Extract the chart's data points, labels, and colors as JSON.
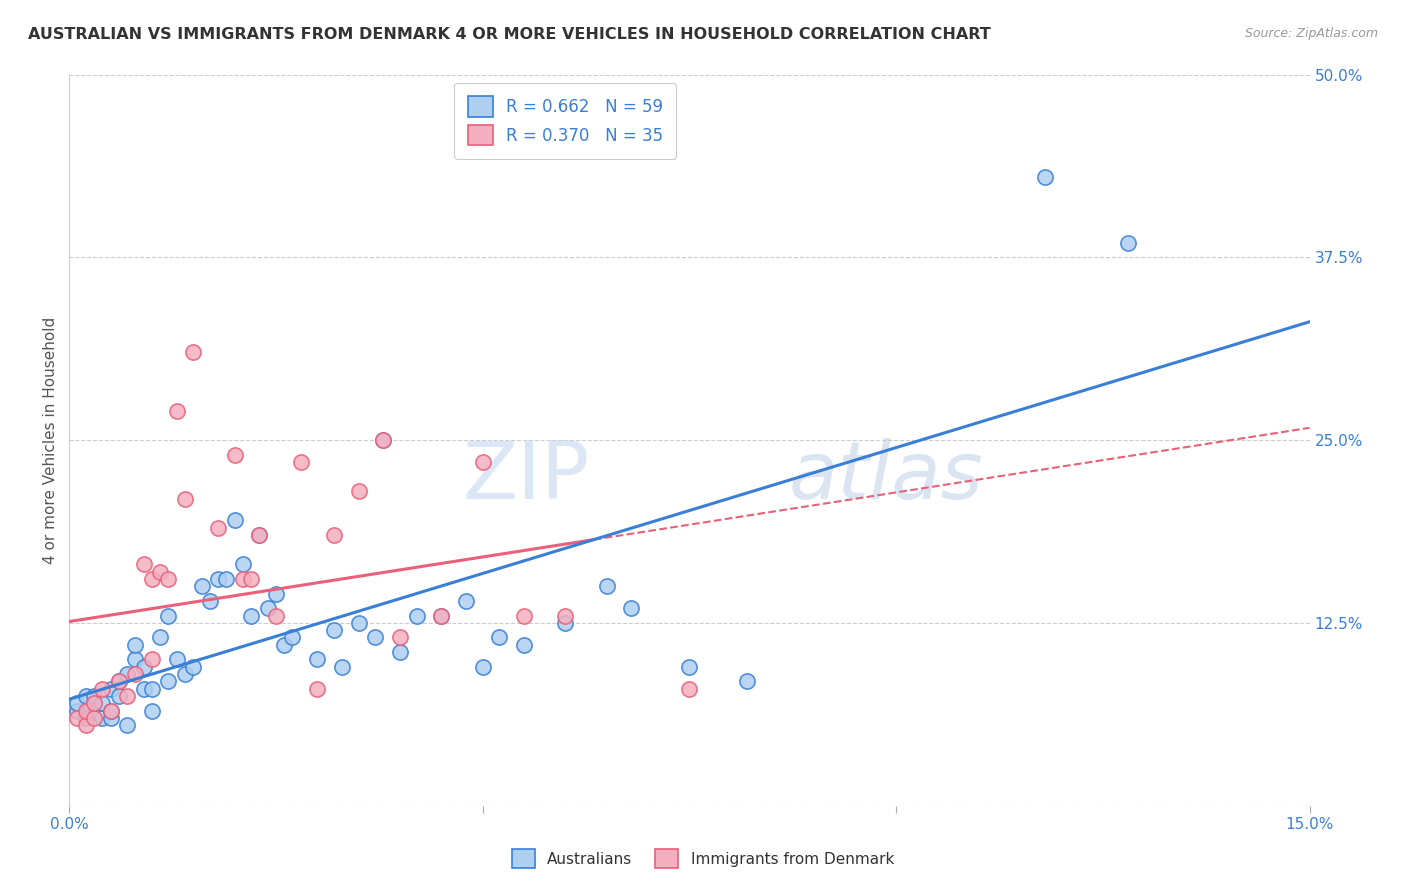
{
  "title": "AUSTRALIAN VS IMMIGRANTS FROM DENMARK 4 OR MORE VEHICLES IN HOUSEHOLD CORRELATION CHART",
  "source": "Source: ZipAtlas.com",
  "ylabel": "4 or more Vehicles in Household",
  "x_min": 0.0,
  "x_max": 0.15,
  "y_min": 0.0,
  "y_max": 0.5,
  "x_ticks": [
    0.0,
    0.05,
    0.1,
    0.15
  ],
  "x_tick_labels": [
    "0.0%",
    "",
    "",
    "15.0%"
  ],
  "y_ticks": [
    0.0,
    0.125,
    0.25,
    0.375,
    0.5
  ],
  "y_tick_labels": [
    "",
    "12.5%",
    "25.0%",
    "37.5%",
    "50.0%"
  ],
  "australian_color": "#aecff0",
  "danish_color": "#f4afc0",
  "line_australian_color": "#3a7fd5",
  "line_danish_color": "#e8607a",
  "R_australian": 0.662,
  "N_australian": 59,
  "R_danish": 0.37,
  "N_danish": 35,
  "watermark_zip": "ZIP",
  "watermark_atlas": "atlas",
  "legend_australians": "Australians",
  "legend_danish": "Immigrants from Denmark",
  "australian_x": [
    0.001,
    0.001,
    0.002,
    0.002,
    0.003,
    0.003,
    0.004,
    0.004,
    0.005,
    0.005,
    0.005,
    0.006,
    0.006,
    0.007,
    0.007,
    0.008,
    0.008,
    0.009,
    0.009,
    0.01,
    0.01,
    0.011,
    0.012,
    0.012,
    0.013,
    0.014,
    0.015,
    0.016,
    0.017,
    0.018,
    0.019,
    0.02,
    0.021,
    0.022,
    0.023,
    0.024,
    0.025,
    0.026,
    0.027,
    0.03,
    0.032,
    0.033,
    0.035,
    0.037,
    0.038,
    0.04,
    0.042,
    0.045,
    0.048,
    0.05,
    0.052,
    0.055,
    0.06,
    0.065,
    0.068,
    0.075,
    0.082,
    0.118,
    0.128
  ],
  "australian_y": [
    0.065,
    0.07,
    0.06,
    0.075,
    0.07,
    0.075,
    0.06,
    0.07,
    0.06,
    0.065,
    0.08,
    0.075,
    0.085,
    0.09,
    0.055,
    0.1,
    0.11,
    0.08,
    0.095,
    0.08,
    0.065,
    0.115,
    0.13,
    0.085,
    0.1,
    0.09,
    0.095,
    0.15,
    0.14,
    0.155,
    0.155,
    0.195,
    0.165,
    0.13,
    0.185,
    0.135,
    0.145,
    0.11,
    0.115,
    0.1,
    0.12,
    0.095,
    0.125,
    0.115,
    0.25,
    0.105,
    0.13,
    0.13,
    0.14,
    0.095,
    0.115,
    0.11,
    0.125,
    0.15,
    0.135,
    0.095,
    0.085,
    0.43,
    0.385
  ],
  "danish_x": [
    0.001,
    0.002,
    0.002,
    0.003,
    0.003,
    0.004,
    0.005,
    0.006,
    0.007,
    0.008,
    0.009,
    0.01,
    0.01,
    0.011,
    0.012,
    0.013,
    0.014,
    0.015,
    0.018,
    0.02,
    0.021,
    0.022,
    0.023,
    0.025,
    0.028,
    0.03,
    0.032,
    0.035,
    0.038,
    0.04,
    0.045,
    0.05,
    0.055,
    0.06,
    0.075
  ],
  "danish_y": [
    0.06,
    0.055,
    0.065,
    0.06,
    0.07,
    0.08,
    0.065,
    0.085,
    0.075,
    0.09,
    0.165,
    0.1,
    0.155,
    0.16,
    0.155,
    0.27,
    0.21,
    0.31,
    0.19,
    0.24,
    0.155,
    0.155,
    0.185,
    0.13,
    0.235,
    0.08,
    0.185,
    0.215,
    0.25,
    0.115,
    0.13,
    0.235,
    0.13,
    0.13,
    0.08
  ]
}
